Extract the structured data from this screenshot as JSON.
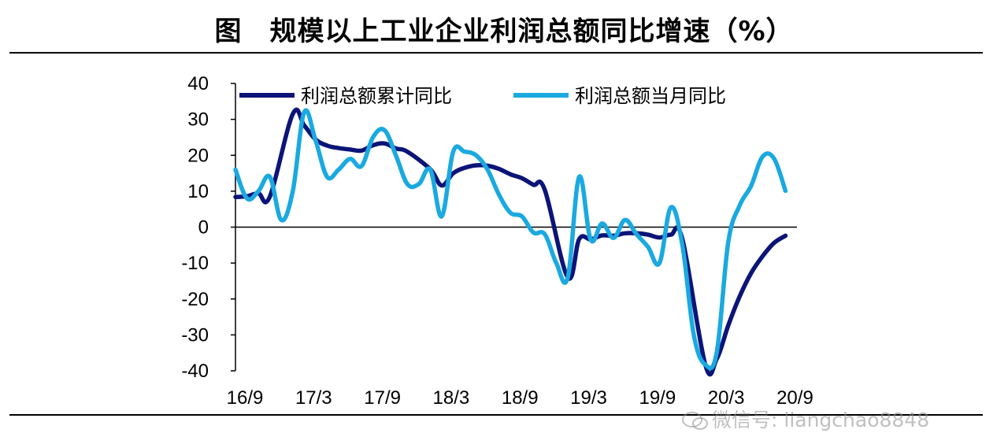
{
  "title": "图　规模以上工业企业利润总额同比增速（%）",
  "watermark": "微信号: liangchao8848",
  "chart_data": {
    "type": "line",
    "title": "图　规模以上工业企业利润总额同比增速（%）",
    "xlabel": "",
    "ylabel": "",
    "ylim": [
      -40,
      40
    ],
    "yticks": [
      40,
      30,
      20,
      10,
      0,
      -10,
      -20,
      -30,
      -40
    ],
    "xlim": [
      "2016-09",
      "2020-10"
    ],
    "xtick_labels": [
      "16/9",
      "17/3",
      "17/9",
      "18/3",
      "18/9",
      "19/3",
      "19/9",
      "20/3",
      "20/9"
    ],
    "legend_position": "top",
    "grid": false,
    "series": [
      {
        "name": "利润总额累计同比",
        "color": "#0c1478",
        "points": [
          [
            "2016-09",
            8.4
          ],
          [
            "2016-10",
            8.6
          ],
          [
            "2016-11",
            9.4
          ],
          [
            "2016-12",
            8.5
          ],
          [
            "2017-02",
            31.5
          ],
          [
            "2017-03",
            28.3
          ],
          [
            "2017-04",
            24.4
          ],
          [
            "2017-05",
            22.7
          ],
          [
            "2017-06",
            22.0
          ],
          [
            "2017-07",
            21.6
          ],
          [
            "2017-08",
            21.3
          ],
          [
            "2017-09",
            22.8
          ],
          [
            "2017-10",
            23.3
          ],
          [
            "2017-11",
            21.9
          ],
          [
            "2017-12",
            21.0
          ],
          [
            "2018-02",
            16.1
          ],
          [
            "2018-03",
            11.6
          ],
          [
            "2018-04",
            15.0
          ],
          [
            "2018-05",
            16.5
          ],
          [
            "2018-06",
            17.2
          ],
          [
            "2018-07",
            17.1
          ],
          [
            "2018-08",
            16.2
          ],
          [
            "2018-09",
            14.7
          ],
          [
            "2018-10",
            13.6
          ],
          [
            "2018-11",
            11.8
          ],
          [
            "2018-12",
            10.3
          ],
          [
            "2019-02",
            -14.0
          ],
          [
            "2019-03",
            -3.3
          ],
          [
            "2019-04",
            -3.4
          ],
          [
            "2019-05",
            -2.3
          ],
          [
            "2019-06",
            -2.4
          ],
          [
            "2019-07",
            -1.7
          ],
          [
            "2019-08",
            -1.7
          ],
          [
            "2019-09",
            -2.1
          ],
          [
            "2019-10",
            -2.9
          ],
          [
            "2019-11",
            -2.1
          ],
          [
            "2019-12",
            -3.3
          ],
          [
            "2020-02",
            -38.3
          ],
          [
            "2020-03",
            -36.7
          ],
          [
            "2020-04",
            -27.4
          ],
          [
            "2020-05",
            -19.3
          ],
          [
            "2020-06",
            -12.8
          ],
          [
            "2020-07",
            -8.1
          ],
          [
            "2020-08",
            -4.4
          ],
          [
            "2020-09",
            -2.4
          ]
        ]
      },
      {
        "name": "利润总额当月同比",
        "color": "#1aa9e0",
        "points": [
          [
            "2016-09",
            16.0
          ],
          [
            "2016-10",
            8.0
          ],
          [
            "2016-11",
            10.0
          ],
          [
            "2016-12",
            14.0
          ],
          [
            "2017-01",
            2.0
          ],
          [
            "2017-02",
            10.0
          ],
          [
            "2017-03",
            32.0
          ],
          [
            "2017-04",
            24.0
          ],
          [
            "2017-05",
            14.0
          ],
          [
            "2017-06",
            16.0
          ],
          [
            "2017-07",
            19.0
          ],
          [
            "2017-08",
            17.0
          ],
          [
            "2017-09",
            25.0
          ],
          [
            "2017-10",
            27.0
          ],
          [
            "2017-11",
            20.0
          ],
          [
            "2017-12",
            12.0
          ],
          [
            "2018-01",
            12.0
          ],
          [
            "2018-02",
            16.0
          ],
          [
            "2018-03",
            3.0
          ],
          [
            "2018-04",
            21.0
          ],
          [
            "2018-05",
            21.0
          ],
          [
            "2018-06",
            20.0
          ],
          [
            "2018-07",
            16.0
          ],
          [
            "2018-08",
            9.0
          ],
          [
            "2018-09",
            4.0
          ],
          [
            "2018-10",
            3.0
          ],
          [
            "2018-11",
            -1.5
          ],
          [
            "2018-12",
            -2.0
          ],
          [
            "2019-01",
            -10.0
          ],
          [
            "2019-02",
            -14.0
          ],
          [
            "2019-03",
            14.0
          ],
          [
            "2019-04",
            -3.5
          ],
          [
            "2019-05",
            1.0
          ],
          [
            "2019-06",
            -3.0
          ],
          [
            "2019-07",
            2.0
          ],
          [
            "2019-08",
            -2.0
          ],
          [
            "2019-09",
            -5.5
          ],
          [
            "2019-10",
            -10.0
          ],
          [
            "2019-11",
            5.5
          ],
          [
            "2019-12",
            -5.0
          ],
          [
            "2020-01",
            -30.0
          ],
          [
            "2020-02",
            -38.3
          ],
          [
            "2020-03",
            -34.9
          ],
          [
            "2020-04",
            -4.3
          ],
          [
            "2020-05",
            6.0
          ],
          [
            "2020-06",
            11.5
          ],
          [
            "2020-07",
            19.6
          ],
          [
            "2020-08",
            19.1
          ],
          [
            "2020-09",
            10.1
          ]
        ]
      }
    ]
  }
}
